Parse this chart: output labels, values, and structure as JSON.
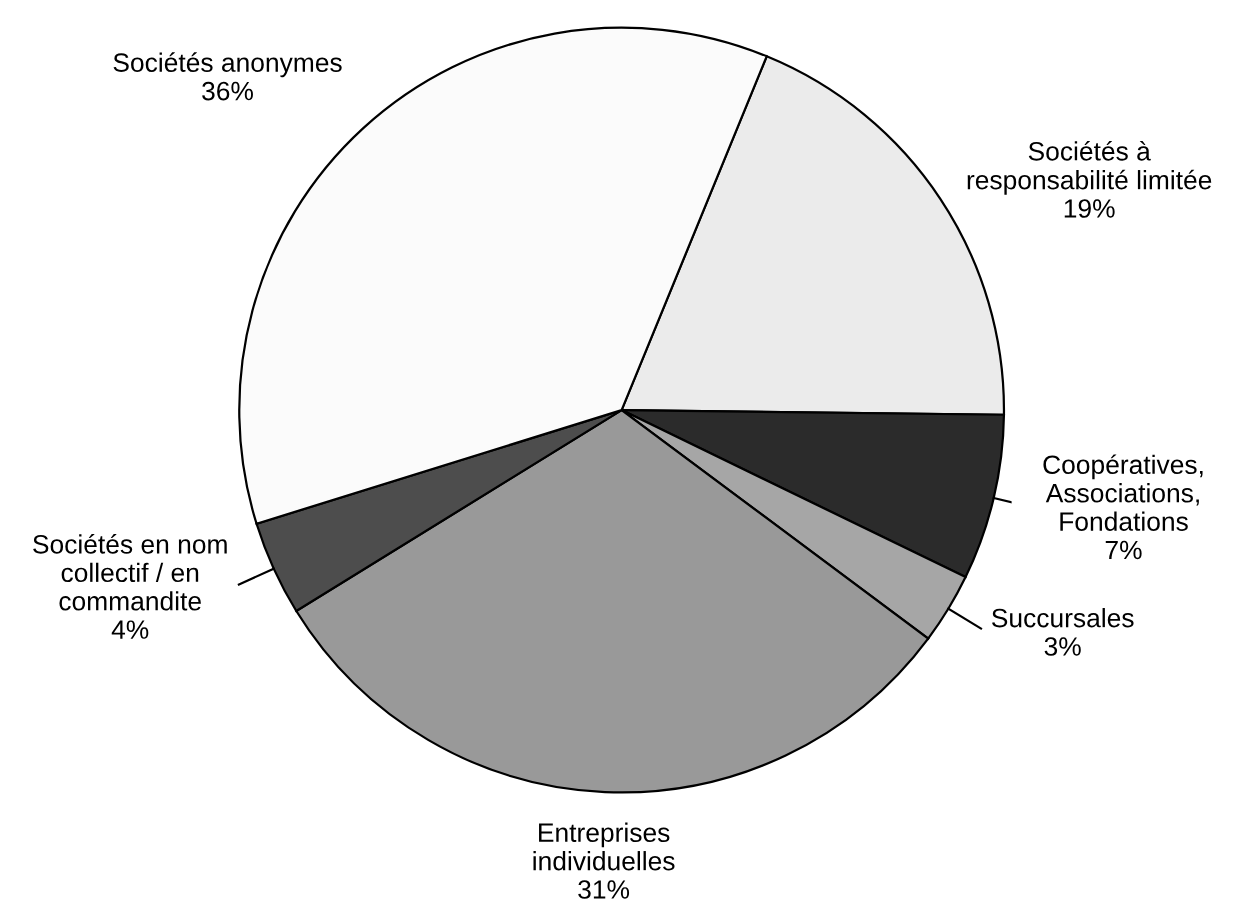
{
  "chart_data": {
    "type": "pie",
    "categories": [
      "Sociétés à\nresponsabilité limitée",
      "Coopératives,\nAssociations,\nFondations",
      "Succursales",
      "Entreprises\nindividuelles",
      "Sociétés en nom\ncollectif / en\ncommandite",
      "Sociétés anonymes"
    ],
    "values": [
      19,
      7,
      3,
      31,
      4,
      36
    ],
    "value_labels": [
      "19%",
      "7%",
      "3%",
      "31%",
      "4%",
      "36%"
    ],
    "colors": [
      "#ebebeb",
      "#2b2b2b",
      "#a6a6a6",
      "#999999",
      "#4d4d4d",
      "#fbfbfb"
    ],
    "legend": false
  }
}
